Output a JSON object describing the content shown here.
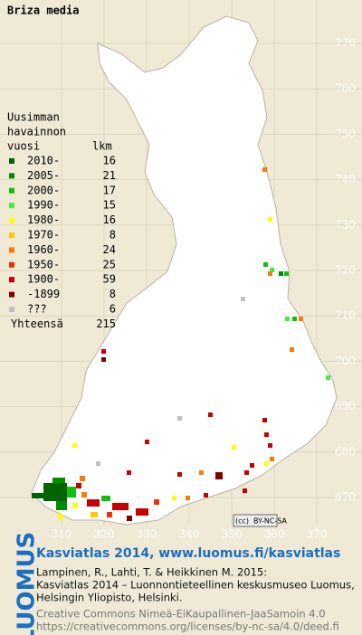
{
  "title": "Briza media",
  "legend": {
    "heading": [
      "Uusimman",
      "havainnon",
      "vuosi"
    ],
    "count_heading": "lkm",
    "rows": [
      {
        "label": "2010-",
        "count": 16,
        "color": "#006400"
      },
      {
        "label": "2005-",
        "count": 21,
        "color": "#008c00"
      },
      {
        "label": "2000-",
        "count": 17,
        "color": "#10c010"
      },
      {
        "label": "1990-",
        "count": 15,
        "color": "#40f040"
      },
      {
        "label": "1980-",
        "count": 16,
        "color": "#ffff00"
      },
      {
        "label": "1970-",
        "count": 8,
        "color": "#ffc800"
      },
      {
        "label": "1960-",
        "count": 24,
        "color": "#ff7800"
      },
      {
        "label": "1950-",
        "count": 25,
        "color": "#f03000"
      },
      {
        "label": "1900-",
        "count": 59,
        "color": "#c80000"
      },
      {
        "label": "-1899",
        "count": 8,
        "color": "#800000"
      },
      {
        "label": "???",
        "count": 6,
        "color": "#c0c0c0"
      }
    ],
    "total_label": "Yhteensä",
    "total": 215
  },
  "axes": {
    "y_labels": [
      770,
      760,
      750,
      740,
      730,
      720,
      710,
      700,
      690,
      680,
      670
    ],
    "x_labels": [
      310,
      320,
      330,
      340,
      350,
      360,
      370
    ]
  },
  "badge": {
    "cc": "(cc)",
    "license": "BY-NC-SA"
  },
  "footer": {
    "logo": "LUOMUS",
    "link": "Kasviatlas 2014, www.luomus.fi/kasviatlas",
    "citation": [
      "Lampinen, R., Lahti, T. & Heikkinen M. 2015:",
      "Kasviatlas 2014 – Luonnontieteellinen keskusmuseo Luomus,",
      "Helsingin Yliopisto, Helsinki."
    ],
    "license": [
      "Creative Commons Nimeä-EiKaupallinen-JaaSamoin 4.0",
      "https://creativecommons.org/licenses/by-nc-sa/4.0/deed.fi"
    ]
  }
}
